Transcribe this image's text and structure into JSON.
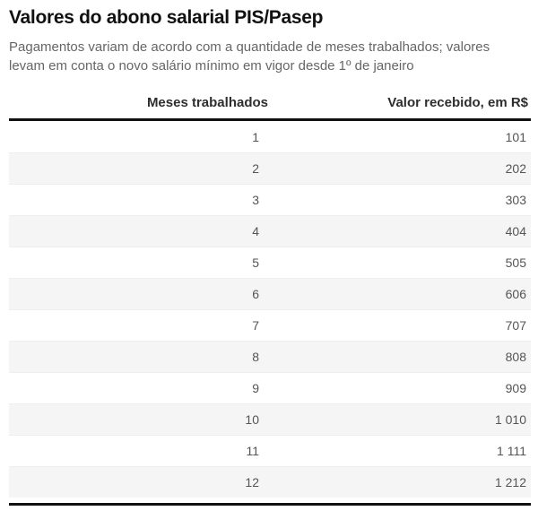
{
  "header": {
    "title": "Valores do abono salarial PIS/Pasep",
    "subtitle": "Pagamentos variam de acordo com a quantidade de meses trabalhados; valores levam em conta o novo salário mínimo em vigor desde 1º de janeiro"
  },
  "table": {
    "columns": [
      {
        "label": "Meses trabalhados"
      },
      {
        "label": "Valor recebido, em R$"
      }
    ],
    "rows": [
      {
        "months": "1",
        "value": "101"
      },
      {
        "months": "2",
        "value": "202"
      },
      {
        "months": "3",
        "value": "303"
      },
      {
        "months": "4",
        "value": "404"
      },
      {
        "months": "5",
        "value": "505"
      },
      {
        "months": "6",
        "value": "606"
      },
      {
        "months": "7",
        "value": "707"
      },
      {
        "months": "8",
        "value": "808"
      },
      {
        "months": "9",
        "value": "909"
      },
      {
        "months": "10",
        "value": "1 010"
      },
      {
        "months": "11",
        "value": "1 111"
      },
      {
        "months": "12",
        "value": "1 212"
      }
    ]
  },
  "colors": {
    "rule": "#111111",
    "title_text": "#111111",
    "subtitle_text": "#666666",
    "header_text": "#2e2e2e",
    "cell_text": "#555555",
    "zebra_stripe": "#f5f5f5",
    "background": "#ffffff"
  },
  "chart_data": {
    "type": "table",
    "title": "Valores do abono salarial PIS/Pasep",
    "subtitle": "Pagamentos variam de acordo com a quantidade de meses trabalhados; valores levam em conta o novo salário mínimo em vigor desde 1º de janeiro",
    "columns": [
      "Meses trabalhados",
      "Valor recebido, em R$"
    ],
    "rows": [
      [
        1,
        101
      ],
      [
        2,
        202
      ],
      [
        3,
        303
      ],
      [
        4,
        404
      ],
      [
        5,
        505
      ],
      [
        6,
        606
      ],
      [
        7,
        707
      ],
      [
        8,
        808
      ],
      [
        9,
        909
      ],
      [
        10,
        1010
      ],
      [
        11,
        1111
      ],
      [
        12,
        1212
      ]
    ],
    "layout": {
      "zebra_striping": true,
      "value_alignment": "right",
      "thick_rules": "top-of-body and bottom"
    }
  }
}
